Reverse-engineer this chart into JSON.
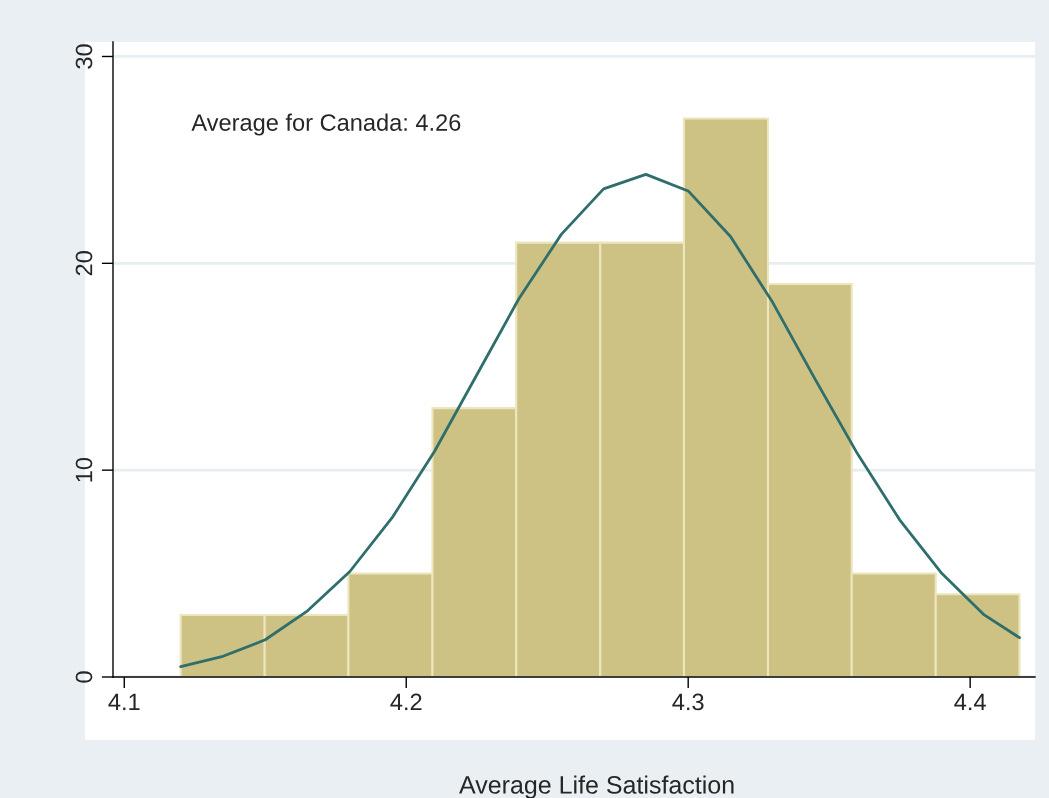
{
  "chart_data": {
    "type": "histogram",
    "xlabel": "Average Life Satisfaction",
    "annotations": [
      "Average for Canada: 4.26"
    ],
    "bins": [
      4.12,
      4.1498,
      4.1795,
      4.2093,
      4.239,
      4.2688,
      4.2985,
      4.3283,
      4.358,
      4.3878,
      4.4175
    ],
    "values": [
      3,
      3,
      5,
      13,
      21,
      21,
      27,
      19,
      5,
      4
    ],
    "color": "#cdc184",
    "series": [
      {
        "type": "line",
        "color": "#2e6e6b",
        "x": [
          4.12,
          4.135,
          4.15,
          4.165,
          4.18,
          4.195,
          4.21,
          4.225,
          4.24,
          4.255,
          4.27,
          4.285,
          4.3,
          4.315,
          4.33,
          4.345,
          4.36,
          4.375,
          4.39,
          4.405,
          4.4175
        ],
        "values": [
          0.5,
          1.0,
          1.8,
          3.2,
          5.1,
          7.7,
          10.9,
          14.6,
          18.3,
          21.4,
          23.6,
          24.3,
          23.5,
          21.3,
          18.1,
          14.4,
          10.8,
          7.6,
          5.0,
          3.0,
          1.9
        ]
      }
    ],
    "xlim": [
      4.096,
      4.423
    ],
    "xticks": [
      4.1,
      4.2,
      4.3,
      4.4
    ],
    "ylim": [
      0,
      30.7
    ],
    "yticks": [
      0,
      10,
      20,
      30
    ],
    "grid": "y"
  }
}
